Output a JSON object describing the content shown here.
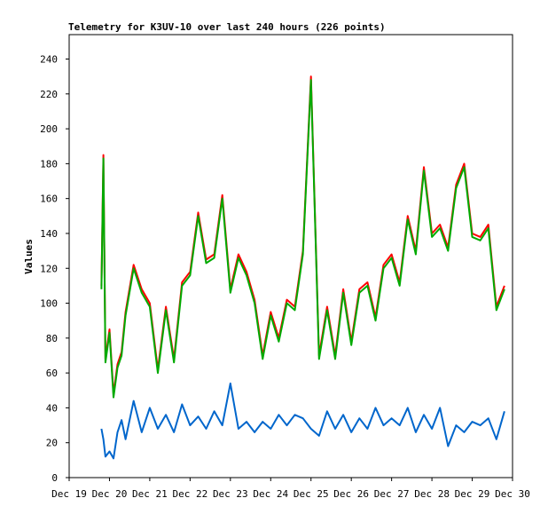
{
  "chart_data": {
    "type": "line",
    "title": "Telemetry for K3UV-10 over last 240 hours (226 points)",
    "ylabel": "Values",
    "xlabel": "",
    "ylim": [
      0,
      254
    ],
    "xlim": [
      0,
      11
    ],
    "grid": false,
    "legend": "none",
    "x_ticks": [
      "Dec 19",
      "Dec 20",
      "Dec 21",
      "Dec 22",
      "Dec 23",
      "Dec 24",
      "Dec 25",
      "Dec 26",
      "Dec 27",
      "Dec 28",
      "Dec 29",
      "Dec 30"
    ],
    "y_ticks": [
      0,
      20,
      40,
      60,
      80,
      100,
      120,
      140,
      160,
      180,
      200,
      220,
      240
    ],
    "x_unit_note": "x values are days after Dec 19 00:00",
    "series": [
      {
        "color": "#ff0000",
        "x": [
          0.8,
          0.85,
          0.9,
          1.0,
          1.1,
          1.2,
          1.3,
          1.4,
          1.6,
          1.8,
          2.0,
          2.2,
          2.4,
          2.6,
          2.8,
          3.0,
          3.2,
          3.4,
          3.6,
          3.8,
          4.0,
          4.2,
          4.4,
          4.6,
          4.8,
          5.0,
          5.2,
          5.4,
          5.6,
          5.8,
          6.0,
          6.2,
          6.4,
          6.6,
          6.8,
          7.0,
          7.2,
          7.4,
          7.6,
          7.8,
          8.0,
          8.2,
          8.4,
          8.6,
          8.8,
          9.0,
          9.2,
          9.4,
          9.6,
          9.8,
          10.0,
          10.2,
          10.4,
          10.6,
          10.8
        ],
        "values": [
          110,
          185,
          68,
          85,
          48,
          65,
          72,
          95,
          122,
          108,
          100,
          62,
          98,
          68,
          112,
          118,
          152,
          125,
          128,
          162,
          108,
          128,
          118,
          102,
          70,
          95,
          80,
          102,
          98,
          130,
          230,
          70,
          98,
          70,
          108,
          78,
          108,
          112,
          92,
          122,
          128,
          112,
          150,
          130,
          178,
          140,
          145,
          132,
          168,
          180,
          140,
          138,
          145,
          98,
          110
        ]
      },
      {
        "color": "#00aa00",
        "x": [
          0.8,
          0.85,
          0.9,
          1.0,
          1.1,
          1.2,
          1.3,
          1.4,
          1.6,
          1.8,
          2.0,
          2.2,
          2.4,
          2.6,
          2.8,
          3.0,
          3.2,
          3.4,
          3.6,
          3.8,
          4.0,
          4.2,
          4.4,
          4.6,
          4.8,
          5.0,
          5.2,
          5.4,
          5.6,
          5.8,
          6.0,
          6.2,
          6.4,
          6.6,
          6.8,
          7.0,
          7.2,
          7.4,
          7.6,
          7.8,
          8.0,
          8.2,
          8.4,
          8.6,
          8.8,
          9.0,
          9.2,
          9.4,
          9.6,
          9.8,
          10.0,
          10.2,
          10.4,
          10.6,
          10.8
        ],
        "values": [
          108,
          183,
          66,
          83,
          46,
          63,
          70,
          93,
          120,
          106,
          98,
          60,
          96,
          66,
          110,
          116,
          150,
          123,
          126,
          160,
          106,
          126,
          116,
          100,
          68,
          93,
          78,
          100,
          96,
          128,
          228,
          68,
          96,
          68,
          106,
          76,
          106,
          110,
          90,
          120,
          126,
          110,
          148,
          128,
          176,
          138,
          143,
          130,
          166,
          178,
          138,
          136,
          143,
          96,
          108
        ]
      },
      {
        "color": "#0066cc",
        "x": [
          0.8,
          0.85,
          0.9,
          1.0,
          1.1,
          1.2,
          1.3,
          1.4,
          1.6,
          1.8,
          2.0,
          2.2,
          2.4,
          2.6,
          2.8,
          3.0,
          3.2,
          3.4,
          3.6,
          3.8,
          4.0,
          4.2,
          4.4,
          4.6,
          4.8,
          5.0,
          5.2,
          5.4,
          5.6,
          5.8,
          6.0,
          6.2,
          6.4,
          6.6,
          6.8,
          7.0,
          7.2,
          7.4,
          7.6,
          7.8,
          8.0,
          8.2,
          8.4,
          8.6,
          8.8,
          9.0,
          9.2,
          9.4,
          9.6,
          9.8,
          10.0,
          10.2,
          10.4,
          10.6,
          10.8
        ],
        "values": [
          28,
          22,
          12,
          15,
          11,
          26,
          33,
          22,
          44,
          26,
          40,
          28,
          36,
          26,
          42,
          30,
          35,
          28,
          38,
          30,
          54,
          28,
          32,
          26,
          32,
          28,
          36,
          30,
          36,
          34,
          28,
          24,
          38,
          28,
          36,
          26,
          34,
          28,
          40,
          30,
          34,
          30,
          40,
          26,
          36,
          28,
          40,
          18,
          30,
          26,
          32,
          30,
          34,
          22,
          38
        ]
      }
    ]
  }
}
